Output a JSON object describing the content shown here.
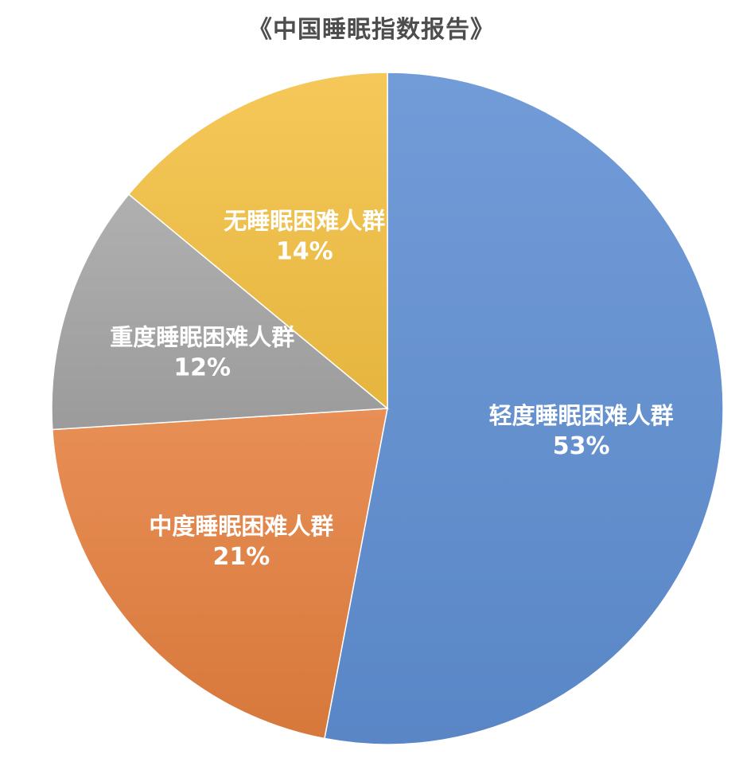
{
  "chart_data": {
    "type": "pie",
    "title": "《中国睡眠指数报告》",
    "slices": [
      {
        "label": "轻度睡眠困难人群",
        "value": 53,
        "value_label": "53%",
        "color": "#5f8fd3"
      },
      {
        "label": "中度睡眠困难人群",
        "value": 21,
        "value_label": "21%",
        "color": "#e5803f"
      },
      {
        "label": "重度睡眠困难人群",
        "value": 12,
        "value_label": "12%",
        "color": "#a5a5a5"
      },
      {
        "label": "无睡眠困难人群",
        "value": 14,
        "value_label": "14%",
        "color": "#f4c142"
      }
    ],
    "start": "12 o'clock",
    "direction": "clockwise",
    "legend": "none"
  }
}
